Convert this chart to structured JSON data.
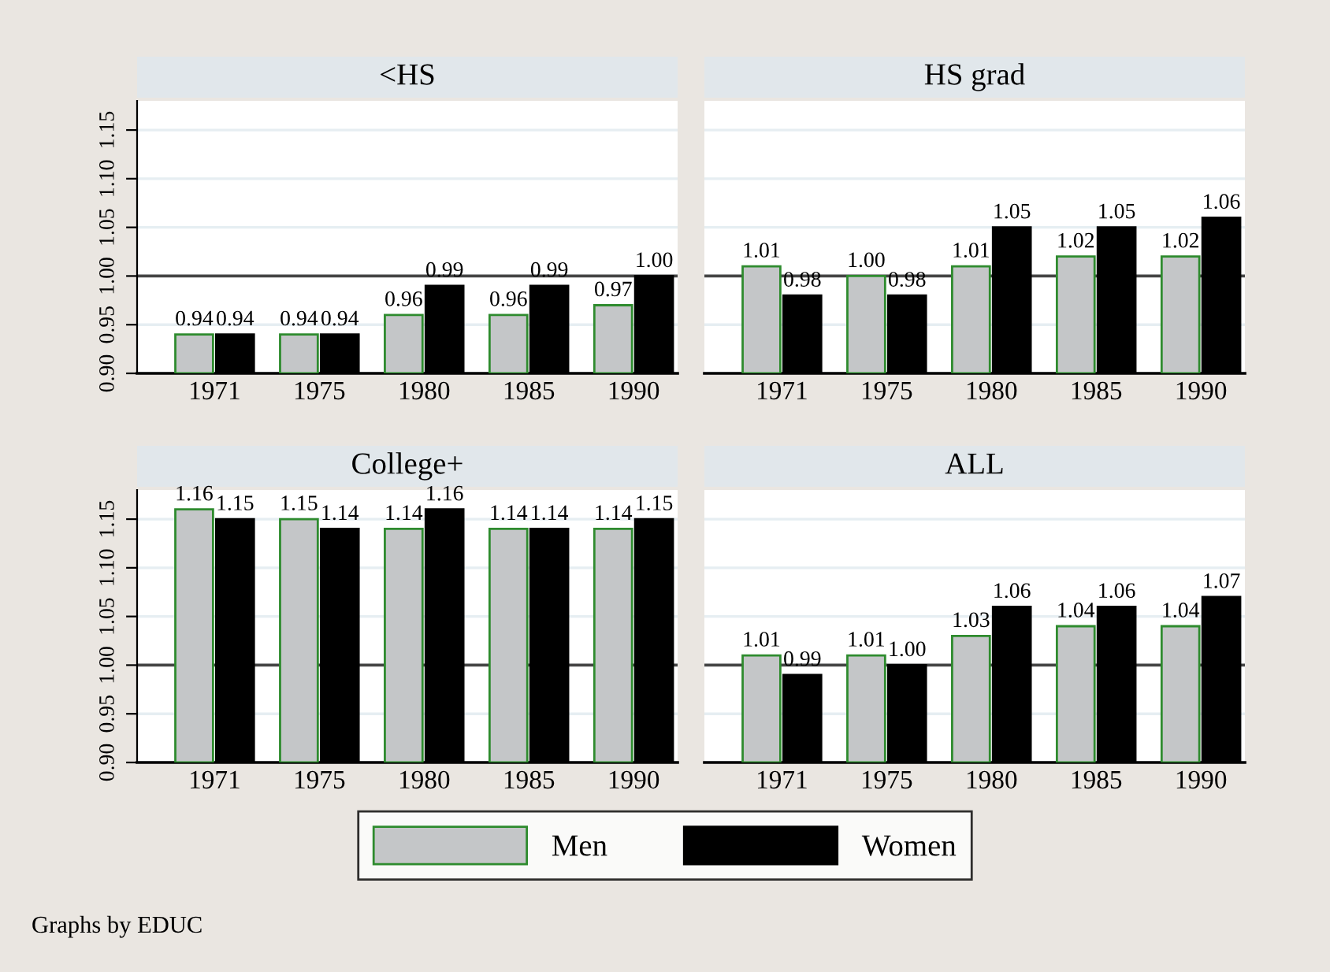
{
  "chart_data": [
    {
      "type": "bar",
      "title": "<HS",
      "categories": [
        "1971",
        "1975",
        "1980",
        "1985",
        "1990"
      ],
      "ylim": [
        0.9,
        1.18
      ],
      "yticks": [
        {
          "value": 0.9,
          "label": "0.90"
        },
        {
          "value": 0.95,
          "label": "0.95"
        },
        {
          "value": 1.0,
          "label": "1.00"
        },
        {
          "value": 1.05,
          "label": "1.05"
        },
        {
          "value": 1.1,
          "label": "1.10"
        },
        {
          "value": 1.15,
          "label": "1.15"
        }
      ],
      "grid": "y",
      "ref_lines": [
        {
          "axis": "y",
          "value": 1.0,
          "color": "#444444"
        }
      ],
      "legend": "bottom",
      "series": [
        {
          "name": "Men",
          "color": "#c4c6c8",
          "values": [
            0.94,
            0.94,
            0.96,
            0.96,
            0.97
          ],
          "value_labels": [
            "0.94",
            "0.94",
            "0.96",
            "0.96",
            "0.97"
          ]
        },
        {
          "name": "Women",
          "color": "#000000",
          "values": [
            0.94,
            0.94,
            0.99,
            0.99,
            1.0
          ],
          "value_labels": [
            "0.94",
            "0.94",
            "0.99",
            "0.99",
            "1.00"
          ]
        }
      ]
    },
    {
      "type": "bar",
      "title": "HS grad",
      "categories": [
        "1971",
        "1975",
        "1980",
        "1985",
        "1990"
      ],
      "ylim": [
        0.9,
        1.18
      ],
      "yticks": [
        {
          "value": 0.9,
          "label": null
        },
        {
          "value": 0.95,
          "label": null
        },
        {
          "value": 1.0,
          "label": null
        },
        {
          "value": 1.05,
          "label": null
        },
        {
          "value": 1.1,
          "label": null
        },
        {
          "value": 1.15,
          "label": null
        }
      ],
      "tick_labels": "x",
      "grid": "y",
      "ref_lines": [
        {
          "axis": "y",
          "value": 1.0,
          "color": "#444444"
        }
      ],
      "series": [
        {
          "color": "#c4c6c8",
          "values": [
            1.01,
            1.0,
            1.01,
            1.02,
            1.02
          ],
          "value_labels": [
            "1.01",
            "1.00",
            "1.01",
            "1.02",
            "1.02"
          ]
        },
        {
          "color": "#000000",
          "values": [
            0.98,
            0.98,
            1.05,
            1.05,
            1.06
          ],
          "value_labels": [
            "0.98",
            "0.98",
            "1.05",
            "1.05",
            "1.06"
          ]
        }
      ]
    },
    {
      "type": "bar",
      "title": "College+",
      "categories": [
        "1971",
        "1975",
        "1980",
        "1985",
        "1990"
      ],
      "ylim": [
        0.9,
        1.18
      ],
      "yticks": [
        {
          "value": 0.9,
          "label": "0.90"
        },
        {
          "value": 0.95,
          "label": "0.95"
        },
        {
          "value": 1.0,
          "label": "1.00"
        },
        {
          "value": 1.05,
          "label": "1.05"
        },
        {
          "value": 1.1,
          "label": "1.10"
        },
        {
          "value": 1.15,
          "label": "1.15"
        }
      ],
      "grid": "y",
      "ref_lines": [
        {
          "axis": "y",
          "value": 1.0,
          "color": "#444444"
        }
      ],
      "series": [
        {
          "color": "#c4c6c8",
          "values": [
            1.16,
            1.15,
            1.14,
            1.14,
            1.14
          ],
          "value_labels": [
            "1.16",
            "1.15",
            "1.14",
            "1.14",
            "1.14"
          ]
        },
        {
          "color": "#000000",
          "values": [
            1.15,
            1.14,
            1.16,
            1.14,
            1.15
          ],
          "value_labels": [
            "1.15",
            "1.14",
            "1.16",
            "1.14",
            "1.15"
          ]
        }
      ]
    },
    {
      "type": "bar",
      "title": "ALL",
      "categories": [
        "1971",
        "1975",
        "1980",
        "1985",
        "1990"
      ],
      "ylim": [
        0.9,
        1.18
      ],
      "yticks": [
        {
          "value": 0.9,
          "label": null
        },
        {
          "value": 0.95,
          "label": null
        },
        {
          "value": 1.0,
          "label": null
        },
        {
          "value": 1.05,
          "label": null
        },
        {
          "value": 1.1,
          "label": null
        },
        {
          "value": 1.15,
          "label": null
        }
      ],
      "tick_labels": "x",
      "grid": "y",
      "ref_lines": [
        {
          "axis": "y",
          "value": 1.0,
          "color": "#444444"
        }
      ],
      "annotations": [
        "Graphs by EDUC"
      ],
      "series": [
        {
          "color": "#c4c6c8",
          "values": [
            1.01,
            1.01,
            1.03,
            1.04,
            1.04
          ],
          "value_labels": [
            "1.01",
            "1.01",
            "1.03",
            "1.04",
            "1.04"
          ]
        },
        {
          "color": "#000000",
          "values": [
            0.99,
            1.0,
            1.06,
            1.06,
            1.07
          ],
          "value_labels": [
            "0.99",
            "1.00",
            "1.06",
            "1.06",
            "1.07"
          ]
        }
      ]
    }
  ]
}
